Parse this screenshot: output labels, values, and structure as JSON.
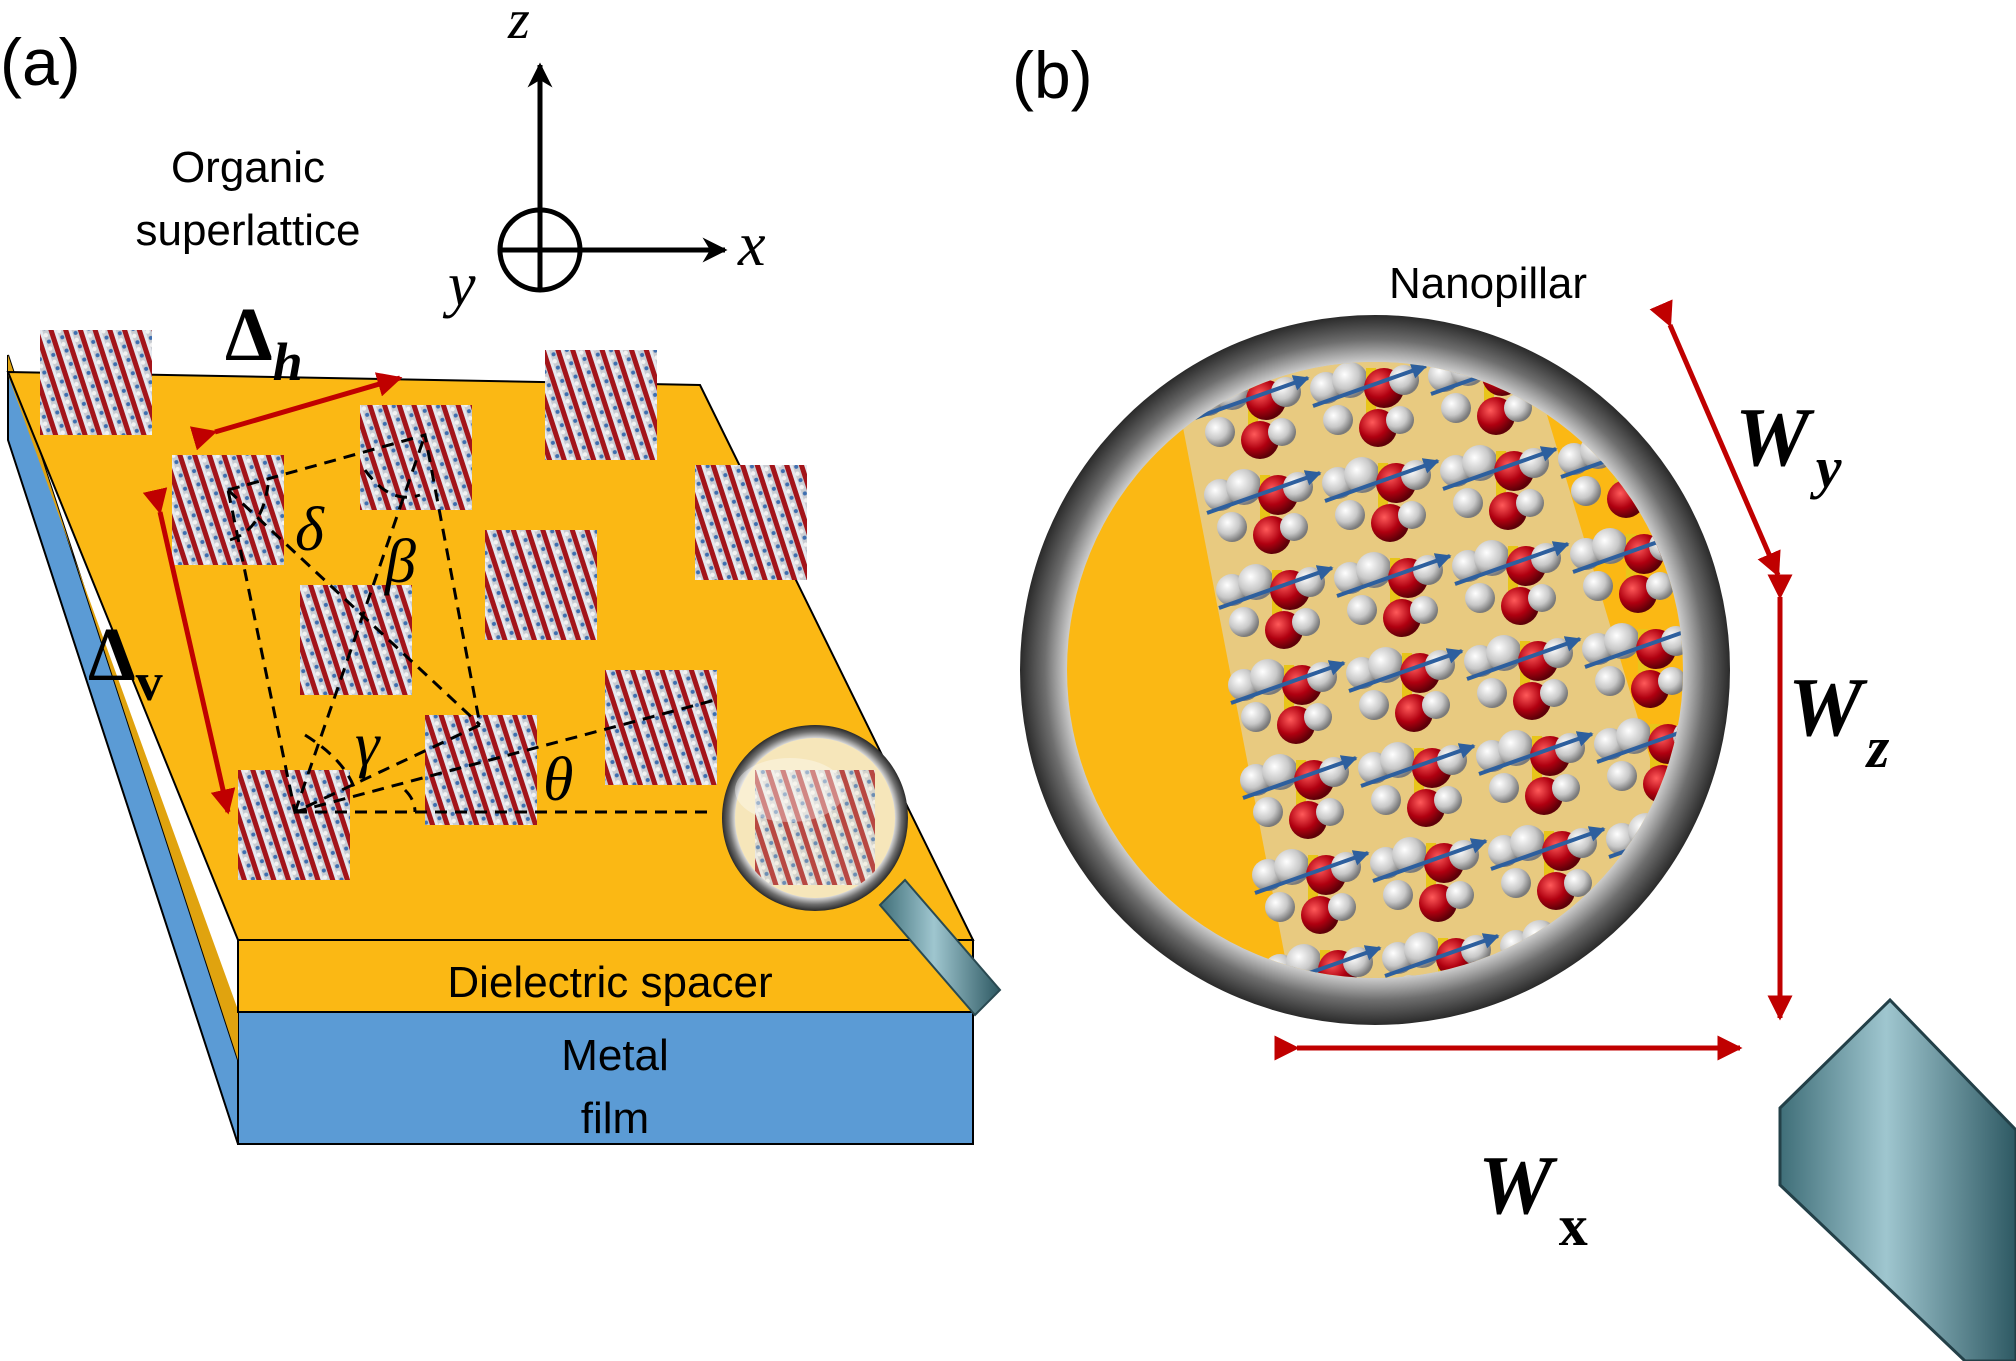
{
  "panel_a": {
    "label": "(a)",
    "organic_label_line1": "Organic",
    "organic_label_line2": "superlattice",
    "axis_z": "z",
    "axis_x": "x",
    "axis_y": "y",
    "delta_h_symbol": "Δ",
    "delta_h_sub": "h",
    "delta_v_symbol": "Δ",
    "delta_v_sub": "v",
    "angle_delta": "δ",
    "angle_beta": "β",
    "angle_gamma": "γ",
    "angle_theta": "θ",
    "spacer_label": "Dielectric spacer",
    "metal_label_line1": "Metal",
    "metal_label_line2": "film"
  },
  "panel_b": {
    "label": "(b)",
    "nanopillar_label": "Nanopillar",
    "wy_symbol": "W",
    "wy_sub": "y",
    "wz_symbol": "W",
    "wz_sub": "z",
    "wx_symbol": "W",
    "wx_sub": "x"
  },
  "colors": {
    "gold": "#fbb814",
    "blue": "#5b9bd5",
    "arrow_red": "#c00000",
    "molecule_red": "#b00010",
    "molecule_gray": "#c8c8c8"
  }
}
